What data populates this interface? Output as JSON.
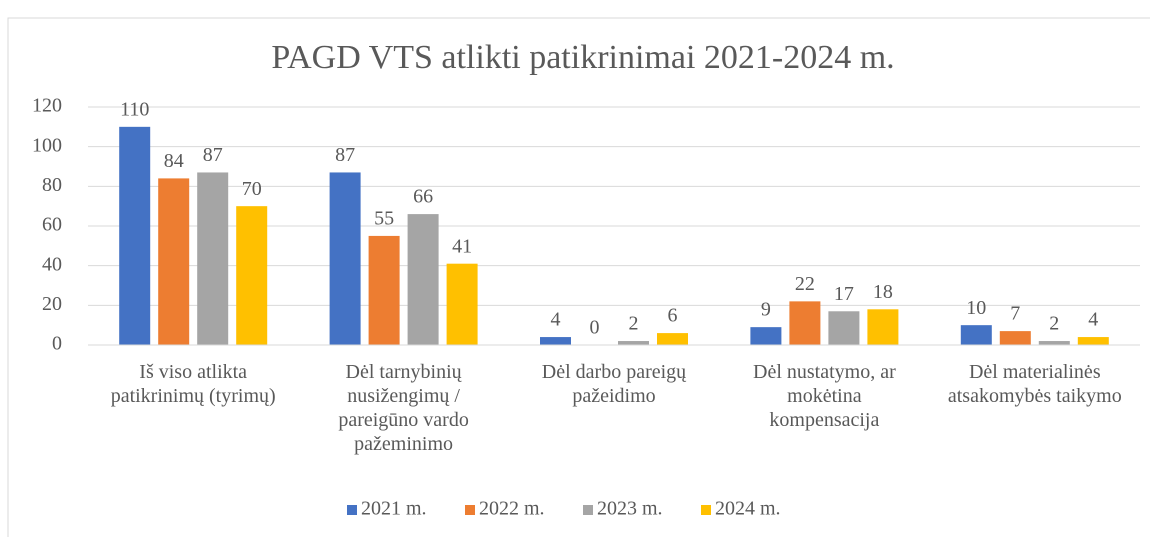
{
  "chart_data": {
    "type": "bar",
    "title": "PAGD VTS atlikti patikrinimai 2021-2024 m.",
    "categories": [
      "Iš viso atlikta\npatikrinimų (tyrimų)",
      "Dėl tarnybinių\nnusižengimų /\npareigūno vardo\npažeminimo",
      "Dėl darbo pareigų\npažeidimo",
      "Dėl nustatymo, ar\nmokėtina\nkompensacija",
      "Dėl materialinės\natsakomybės taikymo"
    ],
    "series": [
      {
        "name": "2021 m.",
        "color": "#4472c4",
        "values": [
          110,
          87,
          4,
          9,
          10
        ]
      },
      {
        "name": "2022 m.",
        "color": "#ed7d31",
        "values": [
          84,
          55,
          0,
          22,
          7
        ]
      },
      {
        "name": "2023 m.",
        "color": "#a5a5a5",
        "values": [
          87,
          66,
          2,
          17,
          2
        ]
      },
      {
        "name": "2024 m.",
        "color": "#ffc000",
        "values": [
          70,
          41,
          6,
          18,
          4
        ]
      }
    ],
    "ylim": [
      0,
      120
    ],
    "yticks": [
      0,
      20,
      40,
      60,
      80,
      100,
      120
    ],
    "grid": true,
    "legend": "bottom"
  }
}
